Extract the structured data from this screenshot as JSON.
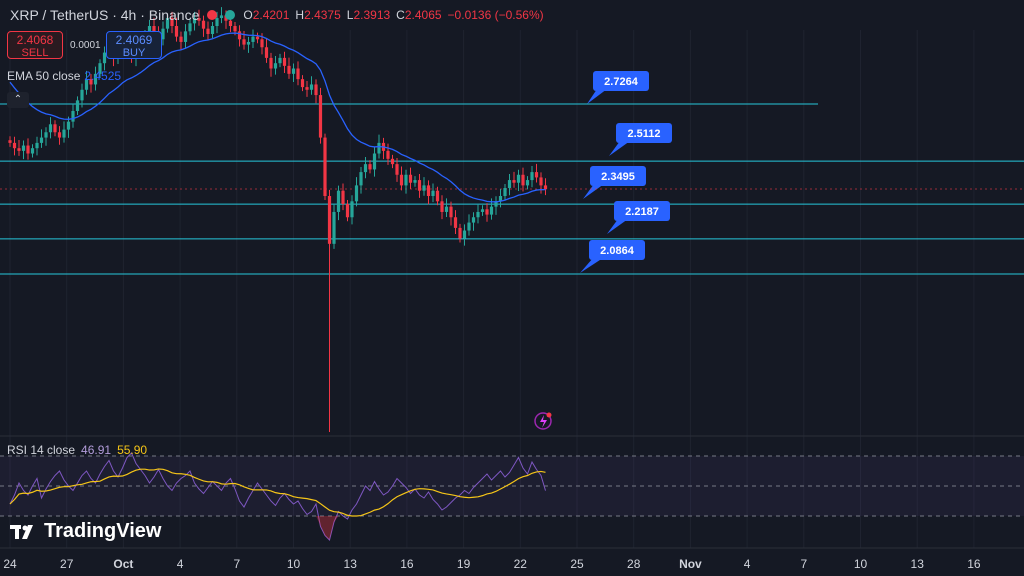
{
  "header": {
    "symbol": "XRP / TetherUS · 4h · Binance",
    "ohlc": [
      {
        "k": "O",
        "v": "2.4201"
      },
      {
        "k": "H",
        "v": "2.4375"
      },
      {
        "k": "L",
        "v": "2.3913"
      },
      {
        "k": "C",
        "v": "2.4065"
      },
      {
        "k": "",
        "v": "−0.0136 (−0.56%)"
      }
    ]
  },
  "trade": {
    "sell_price": "2.4068",
    "sell_label": "SELL",
    "buy_price": "2.4069",
    "buy_label": "BUY",
    "spread": "0.0001"
  },
  "ema_legend": {
    "label": "EMA 50 close",
    "value": "2.4525"
  },
  "rsi_legend": {
    "label": "RSI 14 close",
    "value": "46.91",
    "ma_value": "55.90"
  },
  "brand": "TradingView",
  "colors": {
    "up": "#26a69a",
    "down": "#f23645",
    "ema": "#2962ff",
    "rsi": "#7e57c2",
    "rsi_ma": "#f5c518",
    "level": "#26c6da",
    "label_bg": "#2962ff"
  },
  "chart_data": {
    "type": "candlestick",
    "symbol": "XRP / TetherUS",
    "timeframe": "4h",
    "x_axis_labels": [
      "24",
      "27",
      "Oct",
      "4",
      "7",
      "10",
      "13",
      "16",
      "19",
      "22",
      "25",
      "28",
      "Nov",
      "4",
      "7",
      "10",
      "13",
      "16"
    ],
    "levels": [
      2.7264,
      2.5112,
      2.3495,
      2.2187,
      2.0864
    ],
    "last_close": 2.4065,
    "candles_close": [
      2.58,
      2.56,
      2.55,
      2.57,
      2.54,
      2.56,
      2.58,
      2.6,
      2.62,
      2.65,
      2.62,
      2.6,
      2.63,
      2.66,
      2.7,
      2.74,
      2.78,
      2.82,
      2.8,
      2.84,
      2.88,
      2.92,
      2.95,
      2.9,
      2.93,
      2.97,
      2.94,
      2.9,
      2.93,
      2.96,
      2.99,
      3.02,
      3.0,
      2.97,
      3.01,
      3.05,
      3.02,
      2.98,
      2.96,
      3.0,
      3.03,
      3.05,
      3.04,
      3.01,
      2.99,
      3.02,
      3.05,
      3.06,
      3.04,
      3.02,
      3.0,
      2.97,
      2.95,
      2.96,
      2.98,
      2.97,
      2.94,
      2.9,
      2.86,
      2.88,
      2.9,
      2.87,
      2.84,
      2.86,
      2.82,
      2.79,
      2.78,
      2.8,
      2.76,
      2.6,
      2.38,
      2.2,
      2.32,
      2.4,
      2.35,
      2.3,
      2.36,
      2.42,
      2.47,
      2.5,
      2.48,
      2.54,
      2.58,
      2.55,
      2.52,
      2.5,
      2.46,
      2.42,
      2.46,
      2.43,
      2.44,
      2.4,
      2.42,
      2.38,
      2.4,
      2.36,
      2.32,
      2.34,
      2.3,
      2.26,
      2.22,
      2.25,
      2.28,
      2.3,
      2.32,
      2.33,
      2.31,
      2.34,
      2.36,
      2.38,
      2.41,
      2.44,
      2.43,
      2.46,
      2.42,
      2.44,
      2.47,
      2.45,
      2.42,
      2.4065
    ],
    "ema50_start": 2.83,
    "rsi": [
      38,
      44,
      52,
      47,
      44,
      50,
      55,
      42,
      48,
      53,
      57,
      60,
      54,
      50,
      47,
      52,
      57,
      60,
      55,
      52,
      58,
      63,
      67,
      60,
      56,
      62,
      69,
      72,
      65,
      61,
      57,
      52,
      56,
      61,
      55,
      50,
      47,
      52,
      55,
      57,
      60,
      52,
      48,
      45,
      49,
      53,
      50,
      47,
      52,
      55,
      48,
      40,
      36,
      42,
      47,
      52,
      48,
      44,
      40,
      37,
      42,
      45,
      41,
      38,
      40,
      35,
      31,
      33,
      38,
      23,
      17,
      14,
      26,
      33,
      30,
      28,
      34,
      38,
      44,
      50,
      47,
      53,
      48,
      44,
      46,
      50,
      55,
      52,
      49,
      45,
      48,
      44,
      42,
      46,
      41,
      38,
      34,
      36,
      39,
      42,
      44,
      47,
      45,
      49,
      52,
      55,
      58,
      54,
      57,
      60,
      56,
      59,
      64,
      69,
      62,
      58,
      66,
      61,
      57,
      46.91
    ],
    "rsi_levels": [
      70,
      50,
      30
    ]
  }
}
